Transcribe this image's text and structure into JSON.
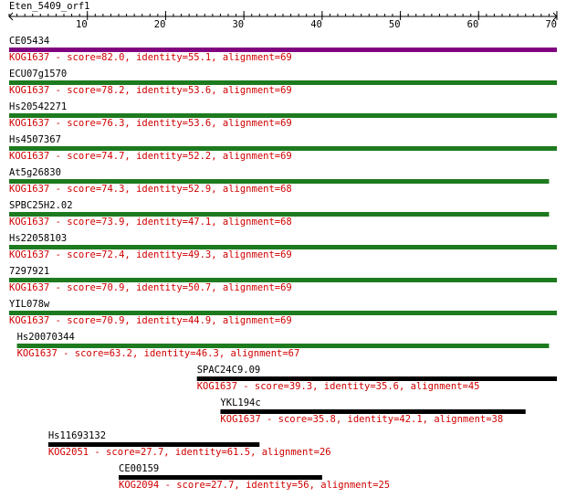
{
  "query": "Eten_5409_orf1",
  "axis": {
    "xlim": [
      0,
      70
    ],
    "xticks": [
      10,
      20,
      30,
      40,
      50,
      60,
      70
    ]
  },
  "label_color": "#d00000",
  "hits": [
    {
      "name": "CE05434",
      "label": "KOG1637 - score=82.0, identity=55.1, alignment=69",
      "start": 0,
      "end": 70,
      "color": "#800080"
    },
    {
      "name": "ECU07g1570",
      "label": "KOG1637 - score=78.2, identity=53.6, alignment=69",
      "start": 0,
      "end": 70,
      "color": "#1e7a1e"
    },
    {
      "name": "Hs20542271",
      "label": "KOG1637 - score=76.3, identity=53.6, alignment=69",
      "start": 0,
      "end": 70,
      "color": "#1e7a1e"
    },
    {
      "name": "Hs4507367",
      "label": "KOG1637 - score=74.7, identity=52.2, alignment=69",
      "start": 0,
      "end": 70,
      "color": "#1e7a1e"
    },
    {
      "name": "At5g26830",
      "label": "KOG1637 - score=74.3, identity=52.9, alignment=68",
      "start": 0,
      "end": 69,
      "color": "#1e7a1e"
    },
    {
      "name": "SPBC25H2.02",
      "label": "KOG1637 - score=73.9, identity=47.1, alignment=68",
      "start": 0,
      "end": 69,
      "color": "#1e7a1e"
    },
    {
      "name": "Hs22058103",
      "label": "KOG1637 - score=72.4, identity=49.3, alignment=69",
      "start": 0,
      "end": 70,
      "color": "#1e7a1e"
    },
    {
      "name": "7297921",
      "label": "KOG1637 - score=70.9, identity=50.7, alignment=69",
      "start": 0,
      "end": 70,
      "color": "#1e7a1e"
    },
    {
      "name": "YIL078w",
      "label": "KOG1637 - score=70.9, identity=44.9, alignment=69",
      "start": 0,
      "end": 70,
      "color": "#1e7a1e"
    },
    {
      "name": "Hs20070344",
      "label": "KOG1637 - score=63.2, identity=46.3, alignment=67",
      "start": 1,
      "end": 69,
      "color": "#1e7a1e"
    },
    {
      "name": "SPAC24C9.09",
      "label": "KOG1637 - score=39.3, identity=35.6, alignment=45",
      "start": 24,
      "end": 70,
      "color": "#000000"
    },
    {
      "name": "YKL194c",
      "label": "KOG1637 - score=35.8, identity=42.1, alignment=38",
      "start": 27,
      "end": 66,
      "color": "#000000"
    },
    {
      "name": "Hs11693132",
      "label": "KOG2051 - score=27.7, identity=61.5, alignment=26",
      "start": 5,
      "end": 32,
      "color": "#000000"
    },
    {
      "name": "CE00159",
      "label": "KOG2094 - score=27.7, identity=56, alignment=25",
      "start": 14,
      "end": 40,
      "color": "#000000"
    }
  ]
}
